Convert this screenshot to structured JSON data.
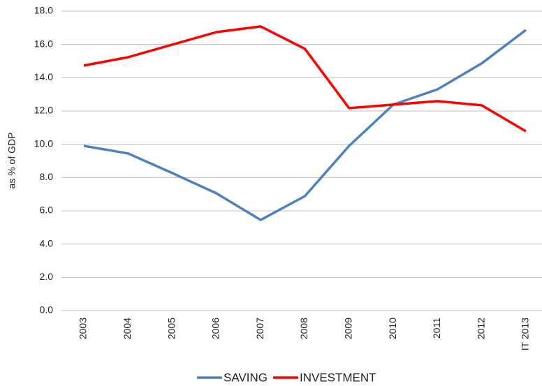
{
  "chart_data": {
    "type": "line",
    "y_label": "as % of GDP",
    "categories": [
      "2003",
      "2004",
      "2005",
      "2006",
      "2007",
      "2008",
      "2009",
      "2010",
      "2011",
      "2012",
      "IT 2013"
    ],
    "series": [
      {
        "name": "SAVING",
        "color": "#4f81bd",
        "values": [
          9.9,
          9.45,
          8.27,
          7.05,
          5.45,
          6.88,
          9.9,
          12.38,
          13.3,
          14.86,
          16.87
        ]
      },
      {
        "name": "INVESTMENT",
        "color": "#ff0000",
        "values": [
          14.73,
          15.23,
          15.99,
          16.74,
          17.08,
          15.74,
          12.17,
          12.38,
          12.59,
          12.34,
          10.78
        ]
      }
    ],
    "ylim": [
      0,
      18
    ],
    "yticks": [
      {
        "value": 0,
        "label": "0.0"
      },
      {
        "value": 2,
        "label": "2.0"
      },
      {
        "value": 4,
        "label": "4.0"
      },
      {
        "value": 6,
        "label": "6.0"
      },
      {
        "value": 8,
        "label": "8.0"
      },
      {
        "value": 10,
        "label": "10.0"
      },
      {
        "value": 12,
        "label": "12.0"
      },
      {
        "value": 14,
        "label": "14.0"
      },
      {
        "value": 16,
        "label": "16.0"
      },
      {
        "value": 18,
        "label": "18.0"
      }
    ],
    "grid": true
  }
}
